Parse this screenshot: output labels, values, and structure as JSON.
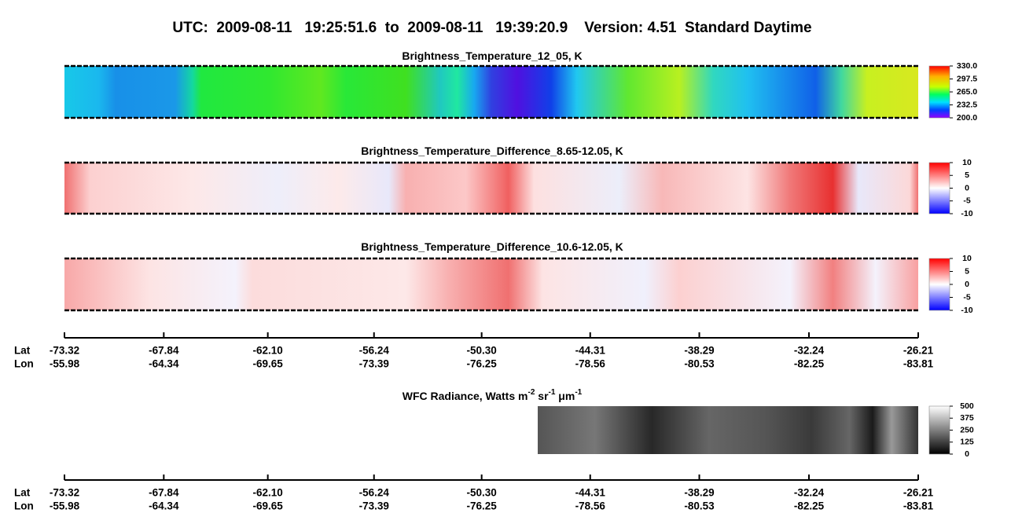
{
  "header": {
    "title": "UTC:  2009-08-11   19:25:51.6  to  2009-08-11   19:39:20.9    Version: 4.51  Standard Daytime"
  },
  "panels": [
    {
      "title": [
        "Brightness_Temperature_12_05, K"
      ],
      "clim": [
        200,
        330
      ],
      "cticks": [
        {
          "value": 330,
          "label": "330.0"
        },
        297.5,
        {
          "value": 265,
          "label": "265.0"
        },
        232.5,
        {
          "value": 200,
          "label": "200.0"
        }
      ]
    },
    {
      "title": [
        "Brightness_Temperature_Difference_8.65-12.05, K"
      ],
      "clim": [
        -10,
        10
      ],
      "cticks": [
        10,
        5,
        0,
        -5,
        -10
      ]
    },
    {
      "title": [
        "Brightness_Temperature_Difference_10.6-12.05, K"
      ],
      "clim": [
        -10,
        10
      ],
      "cticks": [
        10,
        5,
        0,
        -5,
        -10
      ]
    },
    {
      "title": [
        "WFC Radiance, Watts m",
        "-2",
        " sr",
        "-1",
        " μm",
        "-1"
      ],
      "clim": [
        0,
        500
      ],
      "cticks": [
        500,
        375,
        250,
        125,
        0
      ]
    }
  ],
  "axes": [
    {
      "lat_label": "Lat",
      "lon_label": "Lon",
      "xlim": [
        -73.32,
        -26.21
      ],
      "lat": [
        -73.32,
        -67.84,
        {
          "value": -62.1,
          "label": "-62.10"
        },
        -56.24,
        {
          "value": -50.3,
          "label": "-50.30"
        },
        -44.31,
        -38.29,
        -32.24,
        -26.21
      ],
      "lon": [
        -55.98,
        -64.34,
        -69.65,
        -73.39,
        -76.25,
        -78.56,
        -80.53,
        -82.25,
        -83.81
      ]
    },
    {
      "lat_label": "Lat",
      "lon_label": "Lon",
      "xlim": [
        -73.32,
        -26.21
      ],
      "lat": [
        -73.32,
        -67.84,
        {
          "value": -62.1,
          "label": "-62.10"
        },
        -56.24,
        {
          "value": -50.3,
          "label": "-50.30"
        },
        -44.31,
        -38.29,
        -32.24,
        -26.21
      ],
      "lon": [
        -55.98,
        -64.34,
        -69.65,
        -73.39,
        -76.25,
        -78.56,
        -80.53,
        -82.25,
        -83.81
      ]
    }
  ]
}
